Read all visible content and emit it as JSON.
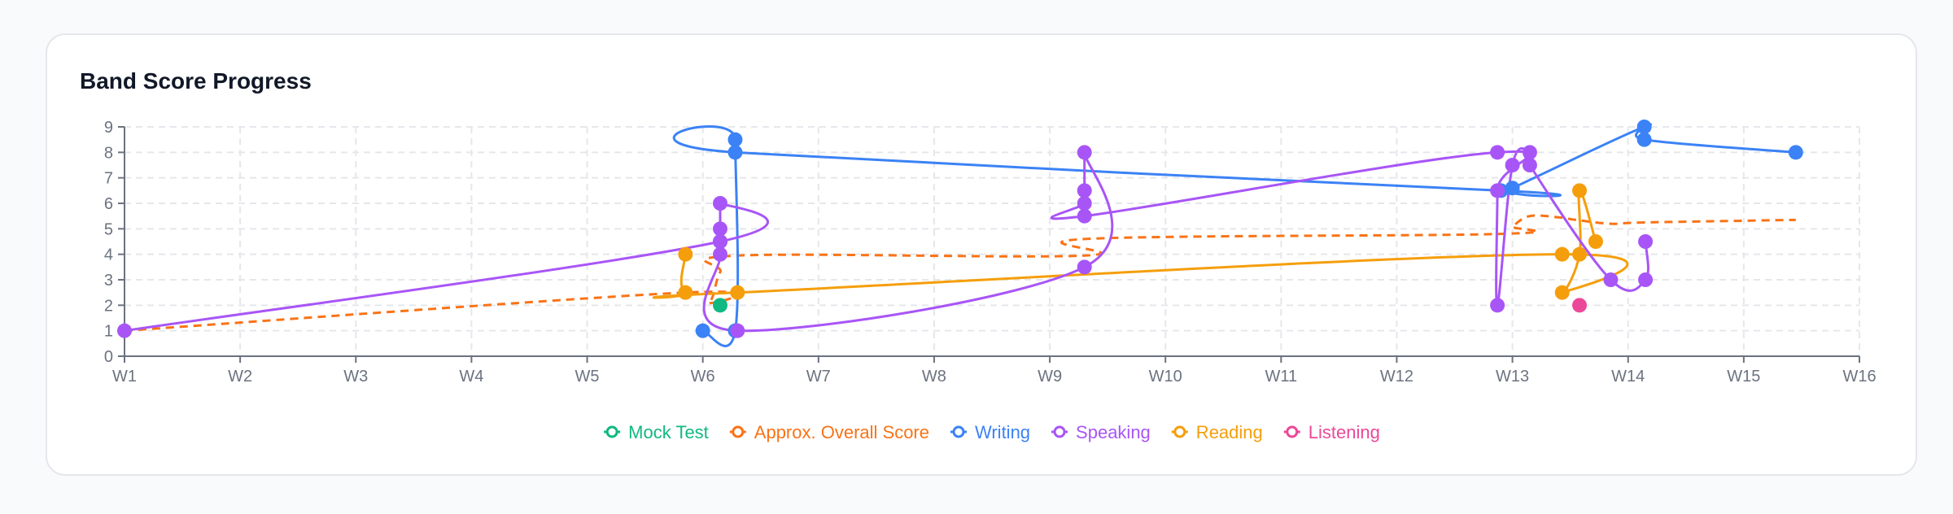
{
  "chart_data": {
    "type": "line",
    "title": "Band Score Progress",
    "x_ticks": [
      "W1",
      "W2",
      "W3",
      "W4",
      "W5",
      "W6",
      "W7",
      "W8",
      "W9",
      "W10",
      "W11",
      "W12",
      "W13",
      "W14",
      "W15",
      "W16"
    ],
    "y_ticks": [
      0,
      1,
      2,
      3,
      4,
      5,
      6,
      7,
      8,
      9
    ],
    "xlim": [
      1,
      16
    ],
    "ylim": [
      0,
      9
    ],
    "grid": true,
    "legend_position": "bottom",
    "series": [
      {
        "name": "Mock Test",
        "color": "#10b981",
        "dashed": false,
        "points": [
          [
            6.15,
            2
          ]
        ]
      },
      {
        "name": "Approx. Overall Score",
        "color": "#f97316",
        "dashed": true,
        "points": [
          [
            1,
            1
          ],
          [
            5.85,
            2.5
          ],
          [
            6.05,
            2.1
          ],
          [
            6.15,
            3.3
          ],
          [
            6.3,
            3.95
          ],
          [
            9.3,
            3.95
          ],
          [
            9.3,
            4.6
          ],
          [
            12.9,
            4.8
          ],
          [
            13.0,
            5.1
          ],
          [
            13.15,
            5.5
          ],
          [
            13.4,
            5.45
          ],
          [
            13.55,
            5.35
          ],
          [
            13.85,
            5.2
          ],
          [
            14.15,
            5.25
          ],
          [
            15.45,
            5.35
          ]
        ]
      },
      {
        "name": "Writing",
        "color": "#3b82f6",
        "dashed": false,
        "points": [
          [
            6.0,
            1
          ],
          [
            6.28,
            1
          ],
          [
            6.28,
            8.5
          ],
          [
            6.28,
            8
          ],
          [
            12.9,
            6.5
          ],
          [
            13.0,
            6.6
          ],
          [
            14.14,
            9
          ],
          [
            14.14,
            8.5
          ],
          [
            15.45,
            8
          ]
        ]
      },
      {
        "name": "Speaking",
        "color": "#a855f7",
        "dashed": false,
        "points": [
          [
            1,
            1
          ],
          [
            6.15,
            4.5
          ],
          [
            6.15,
            6
          ],
          [
            6.15,
            5
          ],
          [
            6.15,
            4.5
          ],
          [
            6.15,
            4
          ],
          [
            6.3,
            1
          ],
          [
            9.3,
            3.5
          ],
          [
            9.3,
            8
          ],
          [
            9.3,
            6.5
          ],
          [
            9.3,
            6
          ],
          [
            9.3,
            5.5
          ],
          [
            12.87,
            8
          ],
          [
            12.87,
            6.5
          ],
          [
            12.87,
            2
          ],
          [
            13.0,
            7.5
          ],
          [
            13.15,
            8
          ],
          [
            13.15,
            7.5
          ],
          [
            13.85,
            3
          ],
          [
            14.15,
            3
          ],
          [
            14.15,
            4.5
          ]
        ]
      },
      {
        "name": "Reading",
        "color": "#f59e0b",
        "dashed": false,
        "points": [
          [
            5.85,
            4
          ],
          [
            5.85,
            2.5
          ],
          [
            6.3,
            2.5
          ],
          [
            13.43,
            4
          ],
          [
            13.43,
            2.5
          ],
          [
            13.58,
            4
          ],
          [
            13.58,
            6.5
          ],
          [
            13.72,
            4.5
          ]
        ]
      },
      {
        "name": "Listening",
        "color": "#ec4899",
        "dashed": false,
        "points": [
          [
            13.58,
            2
          ]
        ]
      }
    ]
  }
}
